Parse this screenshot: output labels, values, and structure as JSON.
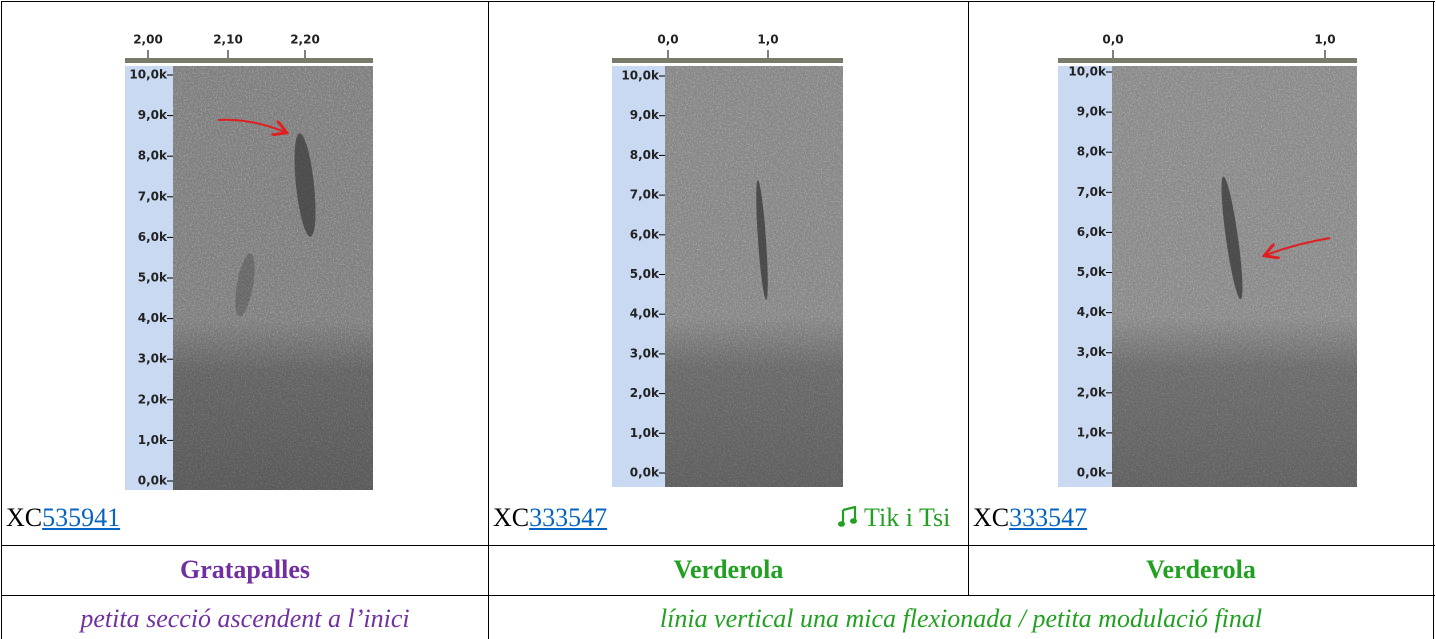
{
  "spectrograms": [
    {
      "time_ticks": [
        "2,00",
        "2,10",
        "2,20"
      ],
      "freq_ticks": [
        "10,0k",
        "9,0k",
        "8,0k",
        "7,0k",
        "6,0k",
        "5,0k",
        "4,0k",
        "3,0k",
        "2,0k",
        "1,0k",
        "0,0k"
      ]
    },
    {
      "time_ticks": [
        "0,0",
        "1,0"
      ],
      "freq_ticks": [
        "10,0k",
        "9,0k",
        "8,0k",
        "7,0k",
        "6,0k",
        "5,0k",
        "4,0k",
        "3,0k",
        "2,0k",
        "1,0k",
        "0,0k"
      ]
    },
    {
      "time_ticks": [
        "0,0",
        "1,0"
      ],
      "freq_ticks": [
        "10,0k",
        "9,0k",
        "8,0k",
        "7,0k",
        "6,0k",
        "5,0k",
        "4,0k",
        "3,0k",
        "2,0k",
        "1,0k",
        "0,0k"
      ]
    }
  ],
  "recordings": [
    {
      "prefix": "XC",
      "id": "535941"
    },
    {
      "prefix": "XC",
      "id": "333547"
    },
    {
      "prefix": "XC",
      "id": "333547"
    }
  ],
  "sound_link": "Tik i Tsi",
  "names": [
    "Gratapalles",
    "Verderola",
    "Verderola"
  ],
  "descriptions": [
    "petita secció ascendent a l’inici",
    "línia vertical una mica flexionada / petita modulació final"
  ]
}
